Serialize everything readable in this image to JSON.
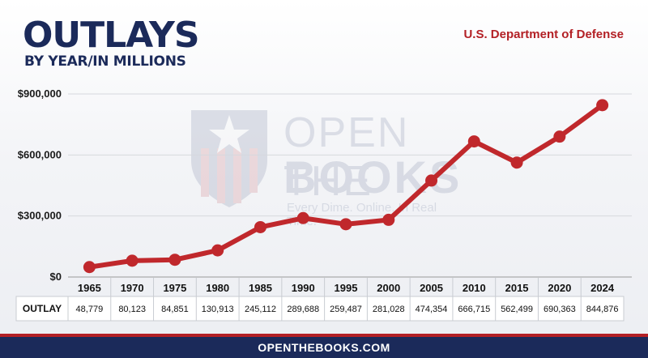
{
  "header": {
    "title": "OUTLAYS",
    "subtitle": "BY YEAR/IN MILLIONS",
    "department": "U.S. Department of Defense"
  },
  "watermark": {
    "line1": "OPEN THE",
    "line2": "BOOKS",
    "tagline": "Every Dime. Online. In Real Time."
  },
  "footer": {
    "url": "OPENTHEBOOKS.COM"
  },
  "colors": {
    "navy": "#1b2a5a",
    "red": "#b32025",
    "line": "#c0282c"
  },
  "chart_data": {
    "type": "line",
    "title": "OUTLAYS",
    "subtitle": "BY YEAR/IN MILLIONS",
    "categories": [
      "1965",
      "1970",
      "1975",
      "1980",
      "1985",
      "1990",
      "1995",
      "2000",
      "2005",
      "2010",
      "2015",
      "2020",
      "2024"
    ],
    "series": [
      {
        "values": [
          48779,
          80123,
          84851,
          130913,
          245112,
          289688,
          259487,
          281028,
          474354,
          666715,
          562499,
          690363,
          844876
        ]
      }
    ],
    "value_labels": [
      "48,779",
      "80,123",
      "84,851",
      "130,913",
      "245,112",
      "289,688",
      "259,487",
      "281,028",
      "474,354",
      "666,715",
      "562,499",
      "690,363",
      "844,876"
    ],
    "table_row_label": "OUTLAY",
    "ylim": [
      0,
      900000
    ],
    "yticks": [
      0,
      300000,
      600000,
      900000
    ],
    "ytick_labels": [
      "$0",
      "$300,000",
      "$600,000",
      "$900,000"
    ],
    "grid": true
  }
}
